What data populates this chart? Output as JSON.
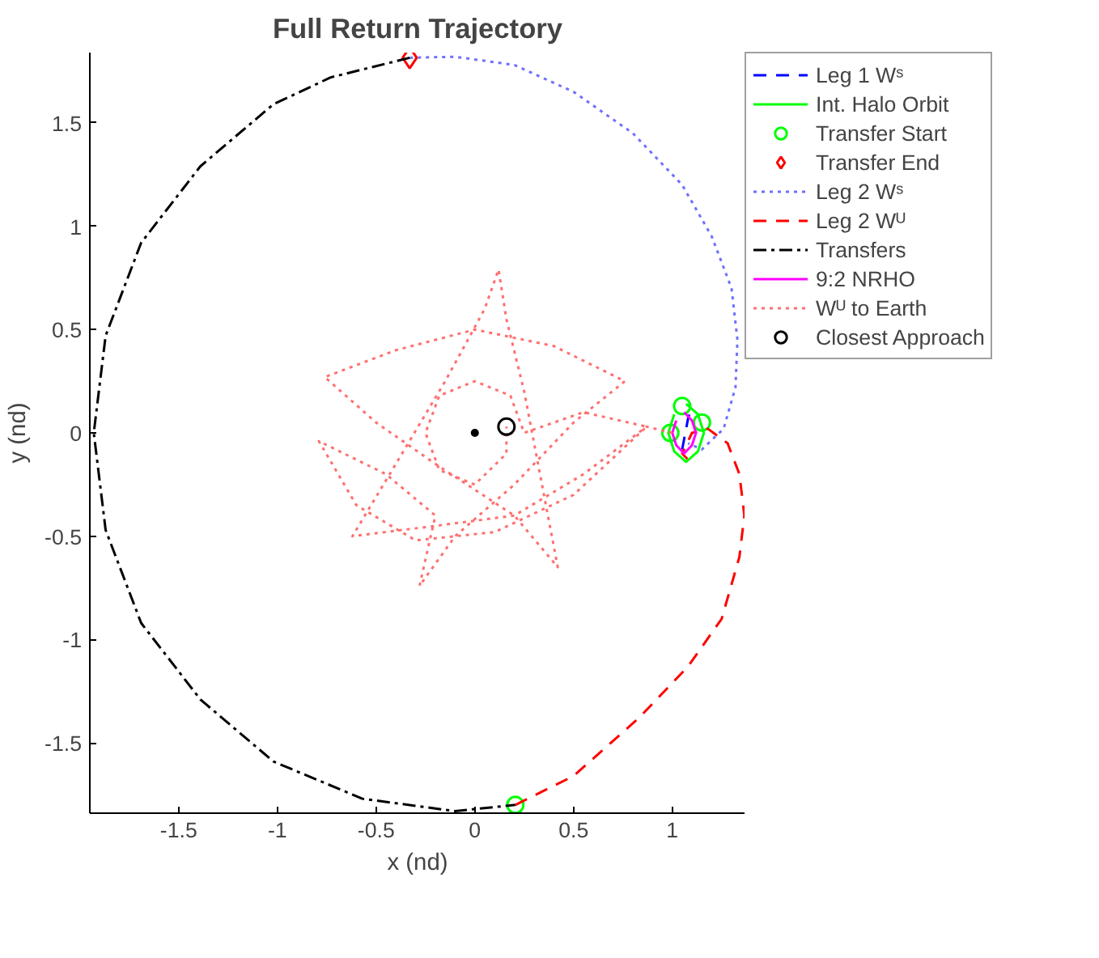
{
  "chart_data": {
    "type": "line",
    "title": "Full Return Trajectory",
    "xlabel": "x (nd)",
    "ylabel": "y (nd)",
    "xlim": [
      -1.95,
      1.37
    ],
    "ylim": [
      -1.84,
      1.84
    ],
    "xticks": [
      -1.5,
      -1,
      -0.5,
      0,
      0.5,
      1
    ],
    "yticks": [
      -1.5,
      -1,
      -0.5,
      0,
      0.5,
      1,
      1.5
    ],
    "grid": false,
    "legend": "top right",
    "series": [
      {
        "name": "Leg 1 Wˢ",
        "color": "#0000ff",
        "line_style": "dashed",
        "x": [
          1.05,
          1.06,
          1.07,
          1.08,
          1.09
        ],
        "values": [
          -0.08,
          -0.03,
          0.02,
          0.07,
          0.1
        ]
      },
      {
        "name": "Int. Halo Orbit",
        "color": "#00ff00",
        "line_style": "solid",
        "x": [
          1.07,
          1.13,
          1.16,
          1.13,
          1.07,
          1.01,
          0.98,
          1.01
        ],
        "values": [
          0.14,
          0.09,
          0.0,
          -0.09,
          -0.14,
          -0.09,
          0.0,
          0.09
        ]
      },
      {
        "name": "Transfer Start",
        "type": "scatter",
        "marker": "circle",
        "color": "#00ff00",
        "x": [
          0.205,
          1.05,
          0.99,
          1.15
        ],
        "values": [
          -1.8,
          0.13,
          0.0,
          0.05
        ]
      },
      {
        "name": "Transfer End",
        "type": "scatter",
        "marker": "diamond",
        "color": "#ff0000",
        "x": [
          -0.33
        ],
        "values": [
          1.815
        ]
      },
      {
        "name": "Leg 2 Wˢ",
        "color": "#7070ff",
        "line_style": "dotted",
        "x": [
          -0.33,
          -0.1,
          0.2,
          0.5,
          0.8,
          1.05,
          1.2,
          1.3,
          1.33,
          1.32,
          1.26,
          1.15,
          1.08
        ],
        "values": [
          1.815,
          1.82,
          1.78,
          1.65,
          1.45,
          1.2,
          0.95,
          0.7,
          0.45,
          0.22,
          0.02,
          -0.08,
          -0.05
        ]
      },
      {
        "name": "Leg 2 Wᵁ",
        "color": "#ff0000",
        "line_style": "dashed",
        "x": [
          0.205,
          0.5,
          0.83,
          1.08,
          1.25,
          1.34,
          1.365,
          1.34,
          1.28,
          1.18,
          1.1,
          1.05,
          1.1
        ],
        "values": [
          -1.8,
          -1.66,
          -1.38,
          -1.13,
          -0.9,
          -0.6,
          -0.4,
          -0.2,
          -0.05,
          0.02,
          0.0,
          -0.1,
          -0.15
        ]
      },
      {
        "name": "Transfers",
        "color": "#000000",
        "line_style": "dashdot",
        "x": [
          -0.33,
          -0.73,
          -1.02,
          -1.39,
          -1.69,
          -1.87,
          -1.93,
          -1.87,
          -1.69,
          -1.39,
          -1.02,
          -0.57,
          -0.1,
          0.205
        ],
        "values": [
          1.815,
          1.72,
          1.59,
          1.29,
          0.92,
          0.47,
          0.0,
          -0.47,
          -0.92,
          -1.29,
          -1.59,
          -1.77,
          -1.83,
          -1.8
        ]
      },
      {
        "name": "9:2 NRHO",
        "color": "#ff00ff",
        "line_style": "solid",
        "x": [
          1.06,
          1.1,
          1.12,
          1.1,
          1.06,
          1.02,
          1.0,
          1.02
        ],
        "values": [
          0.1,
          0.06,
          0.0,
          -0.06,
          -0.1,
          -0.06,
          0.0,
          0.06
        ]
      },
      {
        "name": "Wᵁ to Earth",
        "color": "#ff7070",
        "line_style": "dotted",
        "x": [
          1.0,
          0.87,
          0.55,
          0.2,
          -0.2,
          -0.62,
          -0.4,
          -0.15,
          0.05,
          0.12,
          0.16,
          0.25,
          0.33,
          0.42,
          0.2,
          -0.2,
          -0.5,
          -0.76,
          -0.4,
          0.0,
          0.4,
          0.76,
          0.5,
          0.2,
          -0.1,
          -0.28,
          -0.2,
          -0.45,
          -0.79,
          -0.6,
          -0.3,
          0.1,
          0.5,
          0.87,
          0.55,
          0.25,
          0.18,
          0.0,
          -0.18,
          -0.25,
          -0.18,
          0.0,
          0.16,
          0.16
        ],
        "values": [
          0.0,
          0.03,
          -0.2,
          -0.4,
          -0.45,
          -0.5,
          -0.15,
          0.25,
          0.6,
          0.79,
          0.55,
          0.2,
          -0.2,
          -0.65,
          -0.4,
          -0.15,
          0.05,
          0.27,
          0.4,
          0.5,
          0.42,
          0.25,
          0.05,
          -0.25,
          -0.5,
          -0.74,
          -0.4,
          -0.2,
          -0.04,
          -0.35,
          -0.52,
          -0.48,
          -0.3,
          0.03,
          0.1,
          0.0,
          0.18,
          0.25,
          0.18,
          0.0,
          -0.18,
          -0.25,
          -0.1,
          0.03
        ]
      },
      {
        "name": "Closest Approach",
        "type": "scatter",
        "marker": "circle",
        "color": "#000000",
        "x": [
          0.16
        ],
        "values": [
          0.03
        ]
      },
      {
        "type": "scatter",
        "marker": "dot",
        "color": "#000000",
        "x": [
          0.0
        ],
        "values": [
          0.0
        ]
      }
    ]
  }
}
